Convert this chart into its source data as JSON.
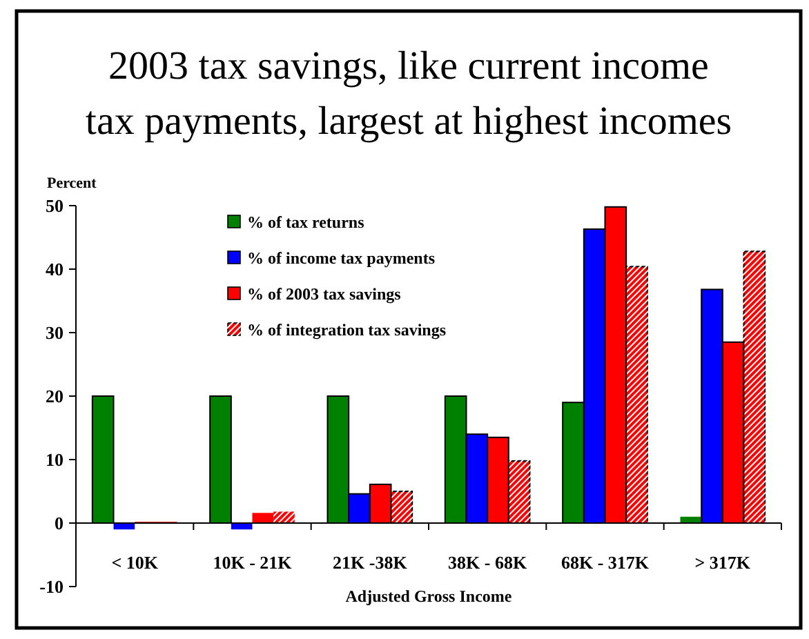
{
  "chart_data": {
    "type": "bar",
    "title": "2003 tax savings, like current income tax payments, largest at highest incomes",
    "ylabel": "Percent",
    "xlabel": "Adjusted Gross Income",
    "categories": [
      "< 10K",
      "10K - 21K",
      "21K -38K",
      "38K - 68K",
      "68K - 317K",
      "> 317K"
    ],
    "series": [
      {
        "name": "% of tax returns",
        "color": "#008000",
        "values": [
          20,
          20,
          20,
          20,
          19,
          1
        ]
      },
      {
        "name": "% of income tax payments",
        "color": "#0000ff",
        "values": [
          -1,
          -1,
          4.6,
          14,
          46.3,
          36.8
        ]
      },
      {
        "name": "% of 2003 tax savings",
        "color": "#ff0000",
        "values": [
          0.2,
          1.6,
          6.1,
          13.5,
          49.8,
          28.5
        ]
      },
      {
        "name": "% of integration tax savings",
        "color": "#ff0000",
        "values": [
          0.2,
          1.8,
          5,
          9.8,
          40.4,
          42.8
        ]
      }
    ],
    "ylim": [
      -10,
      50
    ],
    "yticks": [
      -10,
      0,
      10,
      20,
      30,
      40,
      50
    ],
    "legend": "top left"
  }
}
